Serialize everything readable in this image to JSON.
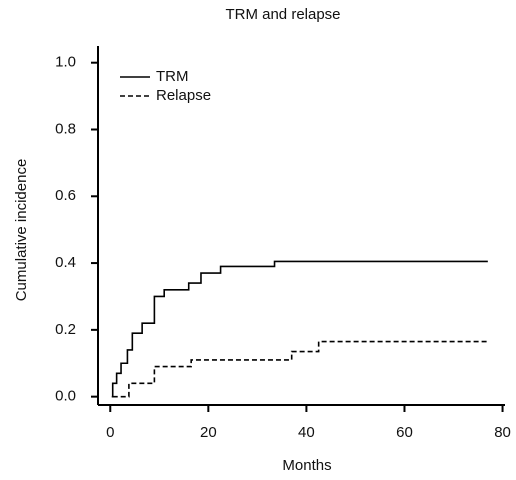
{
  "chart_data": {
    "type": "step",
    "title": "TRM and relapse",
    "x_label": "Months",
    "y_label": "Cumulative incidence",
    "xlim": [
      -2.5,
      80.5
    ],
    "ylim": [
      -0.025,
      1.05
    ],
    "xticks": [
      0,
      20,
      40,
      60,
      80
    ],
    "yticks": [
      {
        "value": 0,
        "label": "0.0"
      },
      {
        "value": 0.2,
        "label": "0.2"
      },
      {
        "value": 0.4,
        "label": "0.4"
      },
      {
        "value": 0.6,
        "label": "0.6"
      },
      {
        "value": 0.8,
        "label": "0.8"
      },
      {
        "value": 1,
        "label": "1.0"
      }
    ],
    "legend": "upper left",
    "series": [
      {
        "name": "TRM",
        "color": "#000000",
        "dash": false,
        "x": [
          0.3,
          0.5,
          1.3,
          2.2,
          3.5,
          4.5,
          6.5,
          9,
          11,
          16,
          18.5,
          22.5,
          33.5,
          77
        ],
        "values": [
          0,
          0.04,
          0.07,
          0.1,
          0.14,
          0.19,
          0.22,
          0.3,
          0.32,
          0.34,
          0.37,
          0.39,
          0.405,
          0.405
        ]
      },
      {
        "name": "Relapse",
        "color": "#000000",
        "dash": true,
        "x": [
          0.5,
          3.8,
          9,
          16.5,
          37,
          42.5,
          77
        ],
        "values": [
          0,
          0.04,
          0.09,
          0.11,
          0.135,
          0.165,
          0.165
        ]
      }
    ]
  }
}
